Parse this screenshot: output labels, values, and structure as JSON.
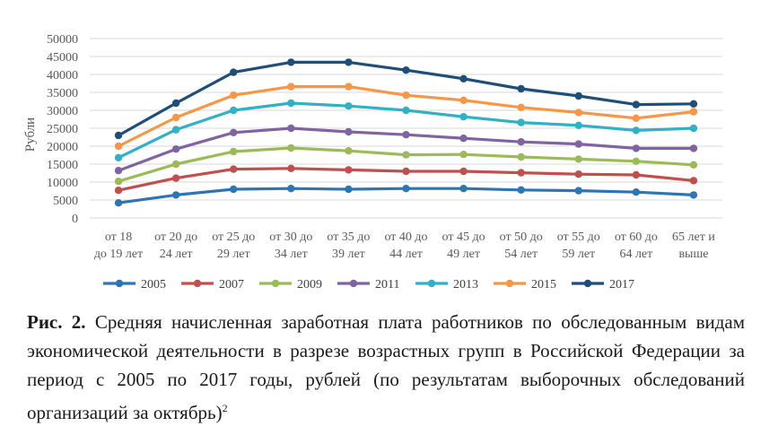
{
  "chart_data": {
    "type": "line",
    "ylabel": "Рубли",
    "ylim": [
      0,
      50000
    ],
    "yticks": [
      "0",
      "5000",
      "10000",
      "15000",
      "20000",
      "25000",
      "30000",
      "35000",
      "40000",
      "45000",
      "50000"
    ],
    "categories": [
      [
        "от 18",
        "до 19 лет"
      ],
      [
        "от 20 до",
        "24 лет"
      ],
      [
        "от 25 до",
        "29 лет"
      ],
      [
        "от 30 до",
        "34 лет"
      ],
      [
        "от 35 до",
        "39 лет"
      ],
      [
        "от 40 до",
        "44 лет"
      ],
      [
        "от 45 до",
        "49 лет"
      ],
      [
        "от 50 до",
        "54 лет"
      ],
      [
        "от 55 до",
        "59 лет"
      ],
      [
        "от 60 до",
        "64 лет"
      ],
      [
        "65 лет и",
        "выше"
      ]
    ],
    "grid": true,
    "legend_position": "bottom",
    "series": [
      {
        "name": "2005",
        "color": "#2e75b6",
        "values": [
          4200,
          6400,
          8000,
          8200,
          8000,
          8200,
          8200,
          7800,
          7600,
          7200,
          6400
        ]
      },
      {
        "name": "2007",
        "color": "#c0504d",
        "values": [
          7700,
          11100,
          13600,
          13800,
          13400,
          13000,
          13000,
          12600,
          12200,
          12000,
          10400
        ]
      },
      {
        "name": "2009",
        "color": "#9bbb59",
        "values": [
          10200,
          15000,
          18500,
          19500,
          18700,
          17600,
          17700,
          17000,
          16400,
          15800,
          14800
        ]
      },
      {
        "name": "2011",
        "color": "#8064a2",
        "values": [
          13200,
          19200,
          23800,
          25000,
          24000,
          23200,
          22200,
          21200,
          20600,
          19400,
          19400
        ]
      },
      {
        "name": "2013",
        "color": "#31b0c6",
        "values": [
          16800,
          24600,
          30000,
          32000,
          31200,
          30000,
          28200,
          26600,
          25800,
          24400,
          25000
        ]
      },
      {
        "name": "2015",
        "color": "#f79646",
        "values": [
          20000,
          28000,
          34200,
          36600,
          36600,
          34200,
          32800,
          30800,
          29400,
          27800,
          29600
        ]
      },
      {
        "name": "2017",
        "color": "#1f4e79",
        "values": [
          23000,
          32000,
          40600,
          43400,
          43400,
          41200,
          38800,
          36000,
          34000,
          31600,
          31800
        ]
      }
    ]
  },
  "caption": {
    "label": "Рис. 2.",
    "text": " Средняя начисленная заработная плата работников по обследованным видам экономической деятельности в разрезе возрастных групп в Российской Федерации за период с 2005 по 2017 годы, рублей (по результатам выборочных обследований организаций за октябрь)",
    "footnote": "2"
  }
}
